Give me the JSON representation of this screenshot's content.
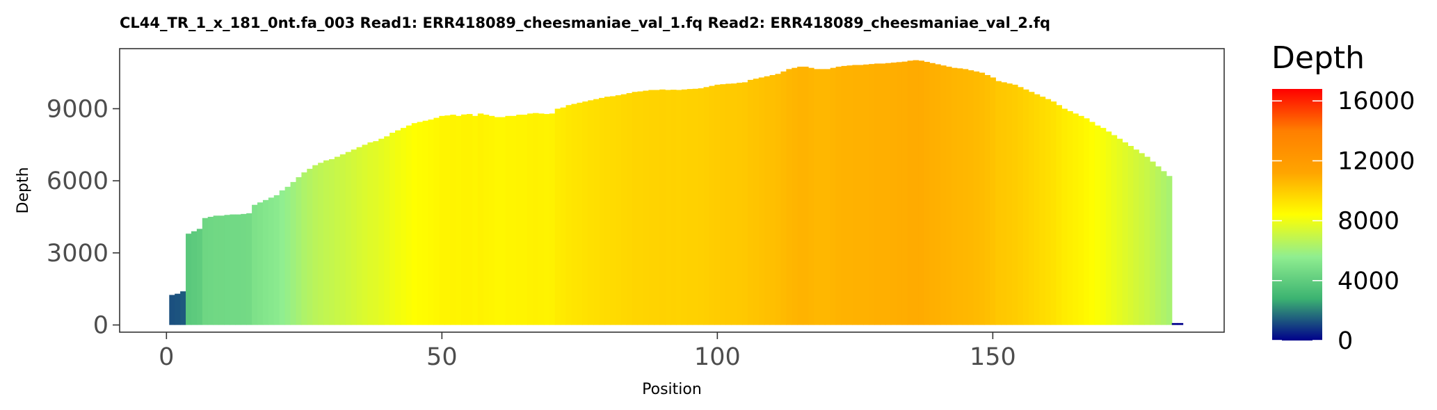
{
  "chart_data": {
    "type": "bar",
    "title": "CL44_TR_1_x_181_0nt.fa_003   Read1: ERR418089_cheesmaniae_val_1.fq   Read2: ERR418089_cheesmaniae_val_2.fq",
    "xlabel": "Position",
    "ylabel": "Depth",
    "xlim": [
      -8.5,
      192
    ],
    "ylim": [
      -300,
      11500
    ],
    "x_ticks": [
      0,
      50,
      100,
      150
    ],
    "y_ticks": [
      0,
      3000,
      6000,
      9000
    ],
    "x_tick_labels": [
      "0",
      "50",
      "100",
      "150"
    ],
    "y_tick_labels": [
      "0",
      "3000",
      "6000",
      "9000"
    ],
    "grid": false,
    "legend": {
      "title": "Depth",
      "position": "right",
      "type": "colorbar",
      "range": [
        0,
        16800
      ],
      "breaks": [
        0,
        4000,
        8000,
        12000,
        16000
      ],
      "break_labels": [
        "0",
        "4000",
        "8000",
        "12000",
        "16000"
      ],
      "colors": [
        "#00008b",
        "#3cb371",
        "#90ee90",
        "#ffff00",
        "#ffa500",
        "#ff7f00",
        "#ff0000"
      ]
    },
    "series": [
      {
        "x_start": 1,
        "values": [
          1250,
          1300,
          1400,
          3800,
          3900,
          4000,
          4450,
          4500,
          4550,
          4550,
          4580,
          4600,
          4600,
          4620,
          4650,
          5000,
          5100,
          5200,
          5300,
          5400,
          5600,
          5750,
          5950,
          6150,
          6350,
          6500,
          6650,
          6750,
          6850,
          6900,
          7000,
          7100,
          7200,
          7300,
          7400,
          7500,
          7600,
          7650,
          7750,
          7850,
          8000,
          8100,
          8200,
          8300,
          8400,
          8450,
          8500,
          8550,
          8620,
          8700,
          8720,
          8750,
          8700,
          8760,
          8780,
          8700,
          8800,
          8750,
          8700,
          8650,
          8650,
          8700,
          8700,
          8750,
          8750,
          8800,
          8820,
          8800,
          8780,
          8800,
          9000,
          9050,
          9150,
          9200,
          9250,
          9300,
          9350,
          9400,
          9450,
          9500,
          9520,
          9560,
          9600,
          9650,
          9700,
          9720,
          9750,
          9780,
          9780,
          9800,
          9780,
          9790,
          9780,
          9800,
          9820,
          9830,
          9850,
          9900,
          9950,
          10000,
          10020,
          10040,
          10050,
          10080,
          10100,
          10200,
          10250,
          10300,
          10350,
          10400,
          10450,
          10550,
          10650,
          10700,
          10750,
          10750,
          10700,
          10650,
          10650,
          10650,
          10700,
          10750,
          10780,
          10800,
          10820,
          10820,
          10840,
          10860,
          10880,
          10880,
          10900,
          10920,
          10940,
          10960,
          11000,
          11020,
          11000,
          10950,
          10900,
          10850,
          10800,
          10750,
          10700,
          10680,
          10650,
          10600,
          10550,
          10500,
          10400,
          10300,
          10150,
          10100,
          10050,
          10000,
          9900,
          9800,
          9700,
          9600,
          9500,
          9400,
          9300,
          9150,
          9000,
          8900,
          8800,
          8700,
          8600,
          8450,
          8300,
          8200,
          8050,
          7900,
          7750,
          7600,
          7450,
          7300,
          7150,
          7000,
          6800,
          6600,
          6400,
          6200,
          0,
          0
        ]
      }
    ]
  }
}
